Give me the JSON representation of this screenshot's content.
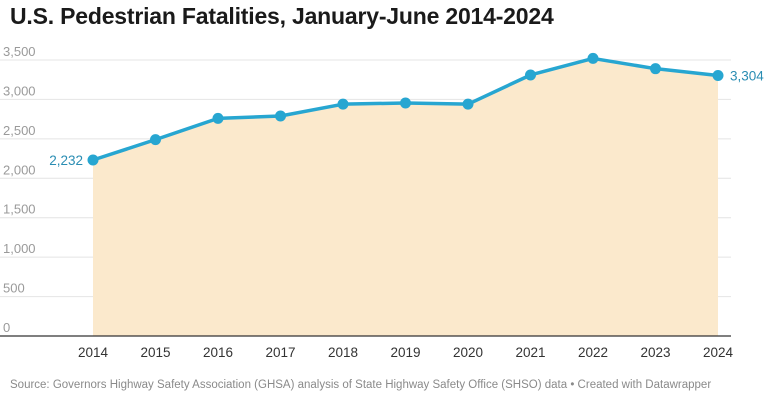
{
  "title": "U.S. Pedestrian Fatalities, January-June 2014-2024",
  "source": "Source: Governors Highway Safety Association (GHSA) analysis of State Highway Safety Office (SHSO) data • Created with Datawrapper",
  "colors": {
    "line": "#27a6d1",
    "area": "#fbe9cc",
    "grid": "#e4e4e4",
    "axis": "#333333",
    "label": "#2a8db3"
  },
  "chart_data": {
    "type": "area",
    "title": "U.S. Pedestrian Fatalities, January-June 2014-2024",
    "xlabel": "",
    "ylabel": "",
    "x": [
      "2014",
      "2015",
      "2016",
      "2017",
      "2018",
      "2019",
      "2020",
      "2021",
      "2022",
      "2023",
      "2024"
    ],
    "values": [
      2232,
      2490,
      2760,
      2790,
      2940,
      2955,
      2940,
      3310,
      3520,
      3390,
      3304
    ],
    "ylim": [
      0,
      3500
    ],
    "yticks": [
      "0",
      "500",
      "1,000",
      "1,500",
      "2,000",
      "2,500",
      "3,000",
      "3,500"
    ],
    "grid": true,
    "data_labels": [
      {
        "index": 0,
        "text": "2,232"
      },
      {
        "index": 10,
        "text": "3,304"
      }
    ]
  }
}
